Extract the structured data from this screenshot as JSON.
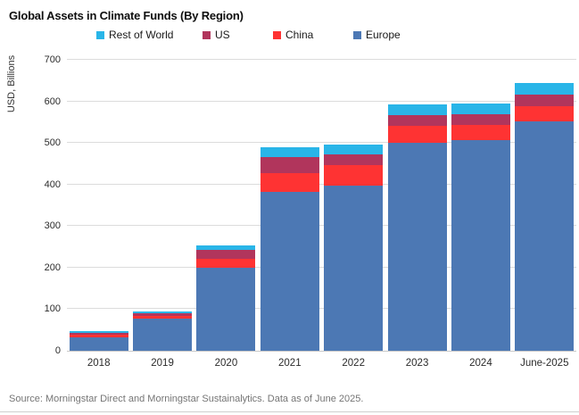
{
  "title": "Global Assets in Climate Funds (By Region)",
  "source_note": "Source: Morningstar Direct and Morningstar Sustainalytics. Data as of June 2025.",
  "legend": {
    "items": [
      {
        "label": "Rest of World",
        "color": "#29b5e8"
      },
      {
        "label": "US",
        "color": "#b1355c"
      },
      {
        "label": "China",
        "color": "#fe3333"
      },
      {
        "label": "Europe",
        "color": "#4c78b4"
      }
    ]
  },
  "colors": {
    "europe": "#4c78b4",
    "china": "#fe3333",
    "us": "#b1355c",
    "rest_of_world": "#29b5e8",
    "gridline": "#dcdcdc",
    "text": "#2b2b2b",
    "source_text": "#757575"
  },
  "chart_data": {
    "type": "bar",
    "stacked": true,
    "title": "Global Assets in Climate Funds (By Region)",
    "categories": [
      "2018",
      "2019",
      "2020",
      "2021",
      "2022",
      "2023",
      "2024",
      "June-2025"
    ],
    "series": [
      {
        "name": "Europe",
        "color": "#4c78b4",
        "values": [
          32,
          77,
          200,
          383,
          398,
          501,
          507,
          551
        ]
      },
      {
        "name": "China",
        "color": "#fe3333",
        "values": [
          6,
          6,
          21,
          45,
          49,
          41,
          37,
          37
        ]
      },
      {
        "name": "US",
        "color": "#b1355c",
        "values": [
          6,
          7,
          22,
          37,
          26,
          26,
          26,
          28
        ]
      },
      {
        "name": "Rest of World",
        "color": "#29b5e8",
        "values": [
          3,
          4,
          10,
          24,
          23,
          24,
          26,
          28
        ]
      }
    ],
    "totals": [
      47,
      94,
      253,
      489,
      496,
      592,
      596,
      644
    ],
    "xlabel": "",
    "ylabel": "USD, Billions",
    "ylim": [
      0,
      700
    ],
    "ytick_step": 100,
    "yticks": [
      0,
      100,
      200,
      300,
      400,
      500,
      600,
      700
    ],
    "grid": true,
    "legend_position": "top",
    "legend_order": [
      "Rest of World",
      "US",
      "China",
      "Europe"
    ]
  }
}
